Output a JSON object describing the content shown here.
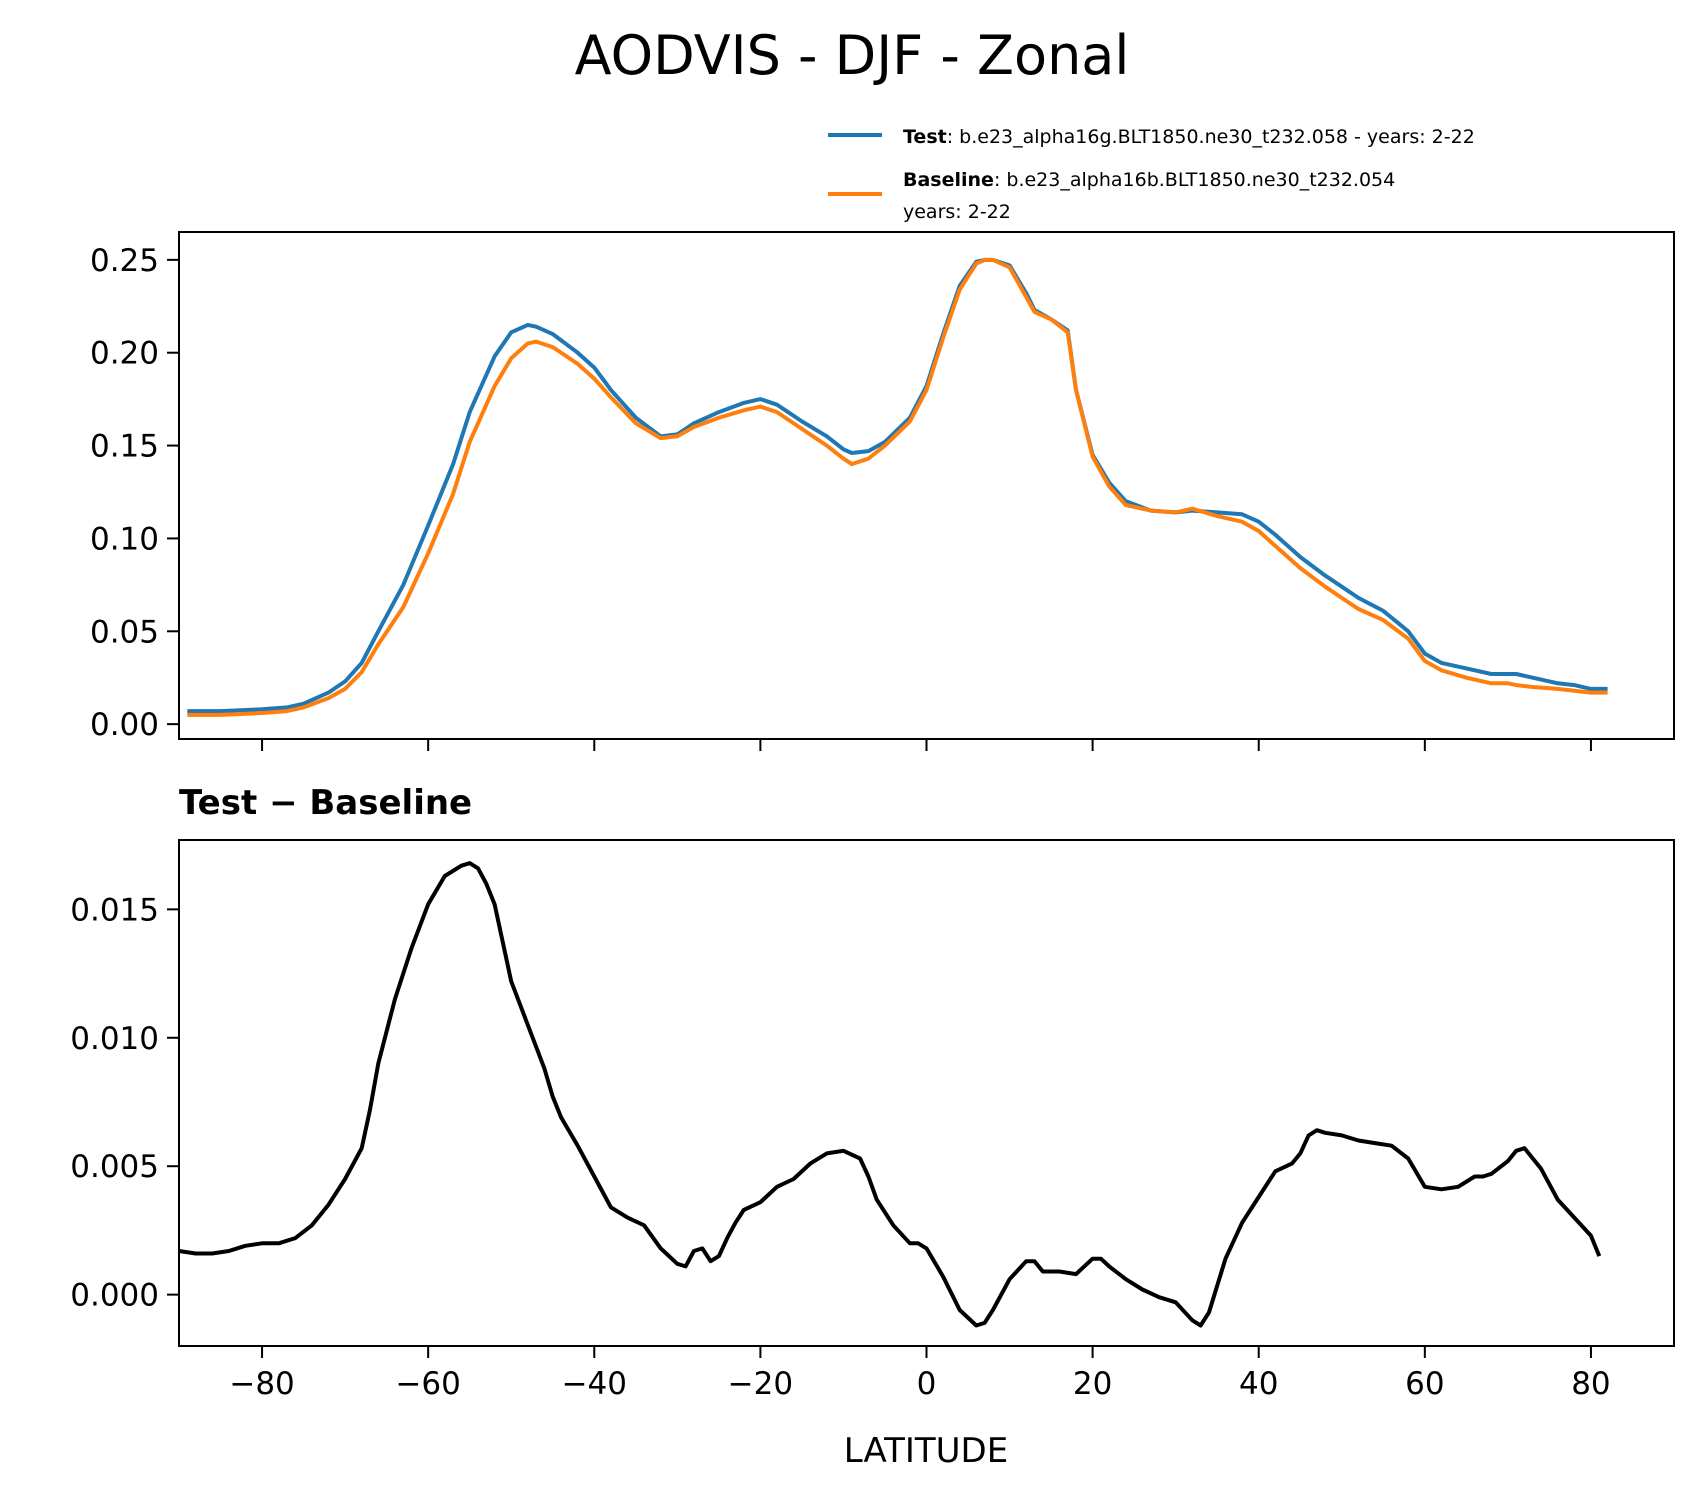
{
  "title": "AODVIS - DJF - Zonal",
  "colors": {
    "test": "#1f77b4",
    "baseline": "#ff7f0e",
    "diff": "#000000"
  },
  "legend": {
    "test_bold": "Test",
    "test_text": ": b.e23_alpha16g.BLT1850.ne30_t232.058 - years: 2-22",
    "baseline_bold": "Baseline",
    "baseline_text": ": b.e23_alpha16b.BLT1850.ne30_t232.054",
    "baseline_text2": "years: 2-22"
  },
  "diff_title": "Test − Baseline",
  "chart_data": [
    {
      "type": "line",
      "panel": "top",
      "xlim": [
        -90,
        90
      ],
      "ylim": [
        -0.008,
        0.265
      ],
      "yticks": [
        0.0,
        0.05,
        0.1,
        0.15,
        0.2,
        0.25
      ],
      "ytick_labels": [
        "0.00",
        "0.05",
        "0.10",
        "0.15",
        "0.20",
        "0.25"
      ],
      "xticks": [
        -80,
        -60,
        -40,
        -20,
        0,
        20,
        40,
        60,
        80
      ],
      "series": [
        {
          "name": "Test",
          "x": [
            -89,
            -85,
            -80,
            -77,
            -75,
            -72,
            -70,
            -68,
            -66,
            -63,
            -60,
            -57,
            -55,
            -52,
            -50,
            -48,
            -47,
            -45,
            -42,
            -40,
            -38,
            -35,
            -32,
            -30,
            -28,
            -25,
            -22,
            -20,
            -18,
            -15,
            -12,
            -10,
            -9,
            -7,
            -5,
            -2,
            0,
            2,
            4,
            6,
            7,
            8,
            10,
            12,
            13,
            15,
            17,
            18,
            20,
            22,
            24,
            27,
            30,
            32,
            35,
            38,
            40,
            42,
            45,
            48,
            50,
            52,
            55,
            58,
            60,
            62,
            65,
            68,
            70,
            71,
            73,
            76,
            78,
            80,
            82
          ],
          "values": [
            0.007,
            0.007,
            0.008,
            0.009,
            0.011,
            0.017,
            0.023,
            0.033,
            0.05,
            0.075,
            0.107,
            0.14,
            0.168,
            0.198,
            0.211,
            0.215,
            0.214,
            0.21,
            0.2,
            0.192,
            0.18,
            0.165,
            0.155,
            0.156,
            0.162,
            0.168,
            0.173,
            0.175,
            0.172,
            0.163,
            0.155,
            0.148,
            0.146,
            0.147,
            0.152,
            0.165,
            0.182,
            0.21,
            0.236,
            0.249,
            0.25,
            0.25,
            0.247,
            0.232,
            0.223,
            0.218,
            0.212,
            0.18,
            0.145,
            0.13,
            0.12,
            0.115,
            0.114,
            0.115,
            0.114,
            0.113,
            0.109,
            0.102,
            0.09,
            0.08,
            0.074,
            0.068,
            0.061,
            0.05,
            0.038,
            0.033,
            0.03,
            0.027,
            0.027,
            0.027,
            0.025,
            0.022,
            0.021,
            0.019,
            0.019
          ]
        },
        {
          "name": "Baseline",
          "x": [
            -89,
            -85,
            -80,
            -77,
            -75,
            -72,
            -70,
            -68,
            -66,
            -63,
            -60,
            -57,
            -55,
            -52,
            -50,
            -48,
            -47,
            -45,
            -42,
            -40,
            -38,
            -35,
            -32,
            -30,
            -28,
            -25,
            -22,
            -20,
            -18,
            -15,
            -12,
            -10,
            -9,
            -7,
            -5,
            -2,
            0,
            2,
            4,
            6,
            7,
            8,
            10,
            12,
            13,
            15,
            17,
            18,
            20,
            22,
            24,
            27,
            30,
            32,
            35,
            38,
            40,
            42,
            45,
            48,
            50,
            52,
            55,
            58,
            60,
            62,
            65,
            68,
            70,
            71,
            73,
            76,
            78,
            80,
            82
          ],
          "values": [
            0.005,
            0.005,
            0.006,
            0.007,
            0.009,
            0.014,
            0.019,
            0.028,
            0.043,
            0.063,
            0.092,
            0.124,
            0.152,
            0.182,
            0.197,
            0.205,
            0.206,
            0.203,
            0.194,
            0.186,
            0.176,
            0.162,
            0.154,
            0.155,
            0.16,
            0.165,
            0.169,
            0.171,
            0.168,
            0.159,
            0.15,
            0.143,
            0.14,
            0.143,
            0.15,
            0.163,
            0.18,
            0.208,
            0.234,
            0.248,
            0.25,
            0.25,
            0.246,
            0.23,
            0.222,
            0.218,
            0.211,
            0.18,
            0.144,
            0.128,
            0.118,
            0.115,
            0.114,
            0.116,
            0.112,
            0.109,
            0.104,
            0.096,
            0.084,
            0.074,
            0.068,
            0.062,
            0.056,
            0.046,
            0.034,
            0.029,
            0.025,
            0.022,
            0.022,
            0.021,
            0.02,
            0.019,
            0.018,
            0.017,
            0.017
          ]
        }
      ]
    },
    {
      "type": "line",
      "panel": "bottom",
      "title": "Test − Baseline",
      "xlabel": "LATITUDE",
      "xlim": [
        -90,
        90
      ],
      "ylim": [
        -0.002,
        0.0177
      ],
      "yticks": [
        0.0,
        0.005,
        0.01,
        0.015
      ],
      "ytick_labels": [
        "0.000",
        "0.005",
        "0.010",
        "0.015"
      ],
      "xticks": [
        -80,
        -60,
        -40,
        -20,
        0,
        20,
        40,
        60,
        80
      ],
      "xtick_labels": [
        "−80",
        "−60",
        "−40",
        "−20",
        "0",
        "20",
        "40",
        "60",
        "80"
      ],
      "series": [
        {
          "name": "Test - Baseline",
          "x": [
            -90,
            -88,
            -86,
            -84,
            -82,
            -80,
            -78,
            -76,
            -74,
            -72,
            -70,
            -68,
            -67,
            -66,
            -64,
            -62,
            -60,
            -58,
            -56,
            -55,
            -54,
            -53,
            -52,
            -50,
            -48,
            -46,
            -45,
            -44,
            -42,
            -40,
            -38,
            -36,
            -34,
            -32,
            -30,
            -29,
            -28,
            -27,
            -26,
            -25,
            -24,
            -23,
            -22,
            -20,
            -19,
            -18,
            -16,
            -14,
            -12,
            -10,
            -8,
            -7,
            -6,
            -4,
            -2,
            -1,
            0,
            2,
            4,
            6,
            7,
            8,
            10,
            12,
            13,
            14,
            16,
            18,
            20,
            21,
            22,
            24,
            26,
            28,
            30,
            32,
            33,
            34,
            36,
            38,
            40,
            42,
            44,
            45,
            46,
            47,
            48,
            50,
            52,
            54,
            56,
            58,
            60,
            62,
            64,
            66,
            67,
            68,
            70,
            71,
            72,
            74,
            76,
            78,
            80,
            81
          ],
          "values": [
            0.0017,
            0.0016,
            0.0016,
            0.0017,
            0.0019,
            0.002,
            0.002,
            0.0022,
            0.0027,
            0.0035,
            0.0045,
            0.0057,
            0.0072,
            0.009,
            0.0115,
            0.0135,
            0.0152,
            0.0163,
            0.0167,
            0.0168,
            0.0166,
            0.016,
            0.0152,
            0.0122,
            0.0105,
            0.0088,
            0.0077,
            0.0069,
            0.0058,
            0.0046,
            0.0034,
            0.003,
            0.0027,
            0.0018,
            0.0012,
            0.0011,
            0.0017,
            0.0018,
            0.0013,
            0.0015,
            0.0022,
            0.0028,
            0.0033,
            0.0036,
            0.0039,
            0.0042,
            0.0045,
            0.0051,
            0.0055,
            0.0056,
            0.0053,
            0.0046,
            0.0037,
            0.0027,
            0.002,
            0.002,
            0.0018,
            0.0007,
            -0.0006,
            -0.0012,
            -0.0011,
            -0.0006,
            0.0006,
            0.0013,
            0.0013,
            0.0009,
            0.0009,
            0.0008,
            0.0014,
            0.0014,
            0.0011,
            0.0006,
            0.0002,
            -0.0001,
            -0.0003,
            -0.001,
            -0.0012,
            -0.0007,
            0.0014,
            0.0028,
            0.0038,
            0.0048,
            0.0051,
            0.0055,
            0.0062,
            0.0064,
            0.0063,
            0.0062,
            0.006,
            0.0059,
            0.0058,
            0.0053,
            0.0042,
            0.0041,
            0.0042,
            0.0046,
            0.0046,
            0.0047,
            0.0052,
            0.0056,
            0.0057,
            0.0049,
            0.0037,
            0.003,
            0.0023,
            0.0015
          ]
        }
      ]
    }
  ]
}
